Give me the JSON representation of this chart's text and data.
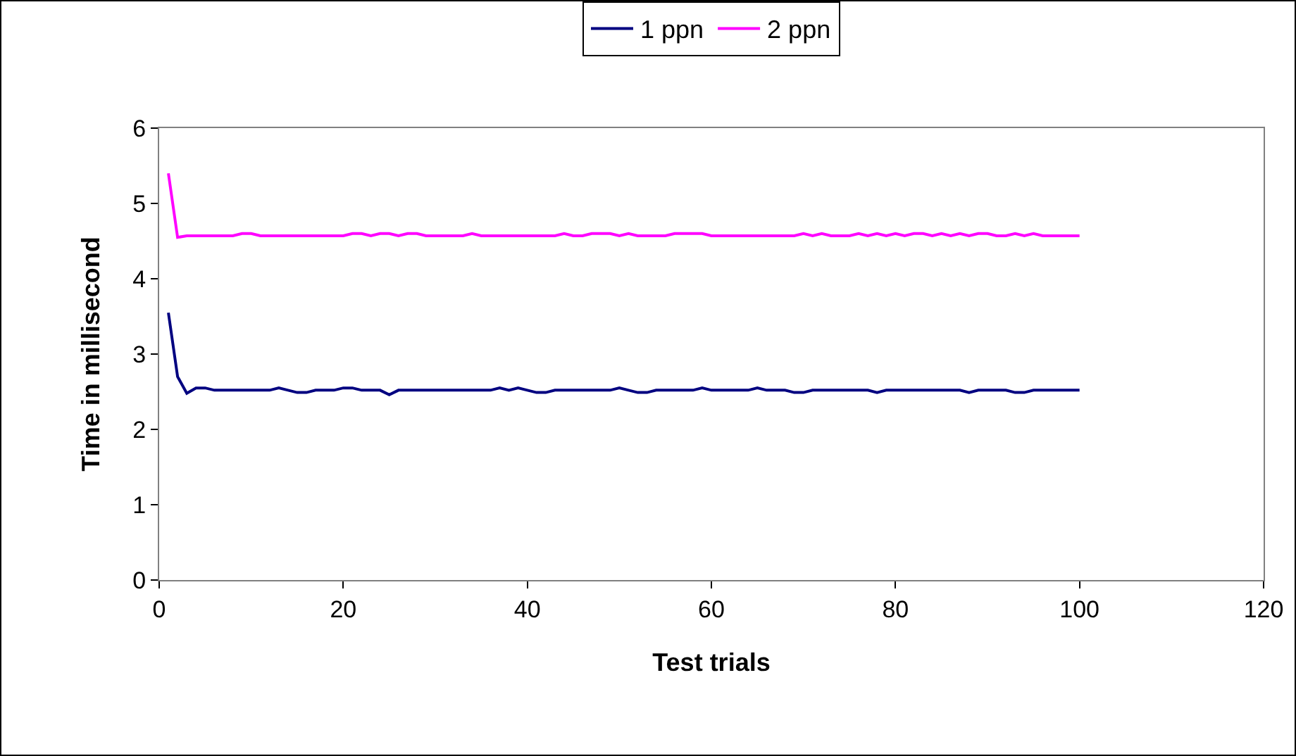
{
  "chart_data": {
    "type": "line",
    "xlabel": "Test trials",
    "ylabel": "Time in millisecond",
    "x": [
      1,
      2,
      3,
      4,
      5,
      6,
      7,
      8,
      9,
      10,
      11,
      12,
      13,
      14,
      15,
      16,
      17,
      18,
      19,
      20,
      21,
      22,
      23,
      24,
      25,
      26,
      27,
      28,
      29,
      30,
      31,
      32,
      33,
      34,
      35,
      36,
      37,
      38,
      39,
      40,
      41,
      42,
      43,
      44,
      45,
      46,
      47,
      48,
      49,
      50,
      51,
      52,
      53,
      54,
      55,
      56,
      57,
      58,
      59,
      60,
      61,
      62,
      63,
      64,
      65,
      66,
      67,
      68,
      69,
      70,
      71,
      72,
      73,
      74,
      75,
      76,
      77,
      78,
      79,
      80,
      81,
      82,
      83,
      84,
      85,
      86,
      87,
      88,
      89,
      90,
      91,
      92,
      93,
      94,
      95,
      96,
      97,
      98,
      99,
      100
    ],
    "series": [
      {
        "name": "1 ppn",
        "color": "#000080",
        "values": [
          3.55,
          2.7,
          2.48,
          2.55,
          2.55,
          2.52,
          2.52,
          2.52,
          2.52,
          2.52,
          2.52,
          2.52,
          2.55,
          2.52,
          2.49,
          2.49,
          2.52,
          2.52,
          2.52,
          2.55,
          2.55,
          2.52,
          2.52,
          2.52,
          2.46,
          2.52,
          2.52,
          2.52,
          2.52,
          2.52,
          2.52,
          2.52,
          2.52,
          2.52,
          2.52,
          2.52,
          2.55,
          2.52,
          2.55,
          2.52,
          2.49,
          2.49,
          2.52,
          2.52,
          2.52,
          2.52,
          2.52,
          2.52,
          2.52,
          2.55,
          2.52,
          2.49,
          2.49,
          2.52,
          2.52,
          2.52,
          2.52,
          2.52,
          2.55,
          2.52,
          2.52,
          2.52,
          2.52,
          2.52,
          2.55,
          2.52,
          2.52,
          2.52,
          2.49,
          2.49,
          2.52,
          2.52,
          2.52,
          2.52,
          2.52,
          2.52,
          2.52,
          2.49,
          2.52,
          2.52,
          2.52,
          2.52,
          2.52,
          2.52,
          2.52,
          2.52,
          2.52,
          2.49,
          2.52,
          2.52,
          2.52,
          2.52,
          2.49,
          2.49,
          2.52,
          2.52,
          2.52,
          2.52,
          2.52,
          2.52
        ]
      },
      {
        "name": "2 ppn",
        "color": "#ff00ff",
        "values": [
          5.4,
          4.55,
          4.57,
          4.57,
          4.57,
          4.57,
          4.57,
          4.57,
          4.6,
          4.6,
          4.57,
          4.57,
          4.57,
          4.57,
          4.57,
          4.57,
          4.57,
          4.57,
          4.57,
          4.57,
          4.6,
          4.6,
          4.57,
          4.6,
          4.6,
          4.57,
          4.6,
          4.6,
          4.57,
          4.57,
          4.57,
          4.57,
          4.57,
          4.6,
          4.57,
          4.57,
          4.57,
          4.57,
          4.57,
          4.57,
          4.57,
          4.57,
          4.57,
          4.6,
          4.57,
          4.57,
          4.6,
          4.6,
          4.6,
          4.57,
          4.6,
          4.57,
          4.57,
          4.57,
          4.57,
          4.6,
          4.6,
          4.6,
          4.6,
          4.57,
          4.57,
          4.57,
          4.57,
          4.57,
          4.57,
          4.57,
          4.57,
          4.57,
          4.57,
          4.6,
          4.57,
          4.6,
          4.57,
          4.57,
          4.57,
          4.6,
          4.57,
          4.6,
          4.57,
          4.6,
          4.57,
          4.6,
          4.6,
          4.57,
          4.6,
          4.57,
          4.6,
          4.57,
          4.6,
          4.6,
          4.57,
          4.57,
          4.6,
          4.57,
          4.6,
          4.57,
          4.57,
          4.57,
          4.57,
          4.57
        ]
      }
    ],
    "xlim": [
      0,
      120
    ],
    "xticks": [
      0,
      20,
      40,
      60,
      80,
      100,
      120
    ],
    "ylim": [
      0,
      6
    ],
    "yticks": [
      0,
      1,
      2,
      3,
      4,
      5,
      6
    ],
    "grid": false,
    "legend": "top",
    "marker": "none",
    "line_style": "solid"
  }
}
